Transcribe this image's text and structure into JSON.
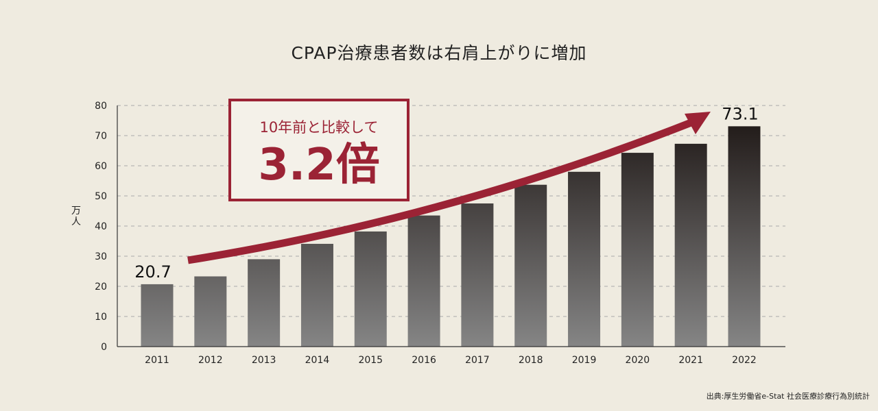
{
  "title": "CPAP治療患者数は右肩上がりに増加",
  "source": "出典:厚生労働省e-Stat 社会医療診療行為別統計",
  "callout": {
    "line1": "10年前と比較して",
    "line2": "3.2倍"
  },
  "colors": {
    "accent": "#9b2335",
    "bar_top": "#1a1311",
    "bar_bottom": "#858585",
    "background": "#efebe0"
  },
  "chart_data": {
    "type": "bar",
    "title": "CPAP治療患者数は右肩上がりに増加",
    "xlabel": "",
    "ylabel": "万人",
    "categories": [
      "2011",
      "2012",
      "2013",
      "2014",
      "2015",
      "2016",
      "2017",
      "2018",
      "2019",
      "2020",
      "2021",
      "2022"
    ],
    "values": [
      20.7,
      23.3,
      29.0,
      34.1,
      38.2,
      43.5,
      47.5,
      53.7,
      58.0,
      64.3,
      67.3,
      73.1
    ],
    "data_labels": {
      "2011": "20.7",
      "2022": "73.1"
    },
    "ylim": [
      0,
      80
    ],
    "yticks": [
      0,
      10,
      20,
      30,
      40,
      50,
      60,
      70,
      80
    ],
    "grid": true
  }
}
